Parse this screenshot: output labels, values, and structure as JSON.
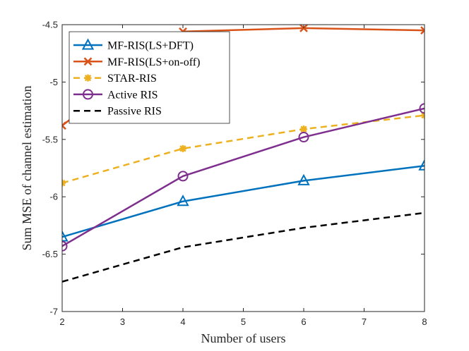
{
  "chart_data": {
    "type": "line",
    "xlabel": "Number of users",
    "ylabel": "Sum MSE of channel estimation",
    "xlim": [
      2,
      8
    ],
    "ylim": [
      -7,
      -4.5
    ],
    "xticks": [
      "2",
      "3",
      "4",
      "5",
      "6",
      "7",
      "8"
    ],
    "yticks": [
      "-7",
      "-6.5",
      "-6",
      "-5.5",
      "-5",
      "-4.5"
    ],
    "grid": false,
    "legend_position": "top-left",
    "series": [
      {
        "name": "MF-RIS(LS+DFT)",
        "color": "#0072BD",
        "style": "solid",
        "marker": "triangle",
        "x": [
          2,
          4,
          6,
          8
        ],
        "y": [
          -6.35,
          -6.04,
          -5.86,
          -5.73
        ]
      },
      {
        "name": "MF-RIS(LS+on-off)",
        "color": "#D95319",
        "style": "solid",
        "marker": "x",
        "x": [
          2,
          4,
          6,
          8
        ],
        "y": [
          -5.38,
          -4.56,
          -4.53,
          -4.55
        ]
      },
      {
        "name": "STAR-RIS",
        "color": "#EDB120",
        "style": "dashed",
        "marker": "star",
        "x": [
          2,
          4,
          6,
          8
        ],
        "y": [
          -5.88,
          -5.58,
          -5.41,
          -5.29
        ]
      },
      {
        "name": "Active RIS",
        "color": "#7E2F8E",
        "style": "solid",
        "marker": "circle",
        "x": [
          2,
          4,
          6,
          8
        ],
        "y": [
          -6.43,
          -5.82,
          -5.48,
          -5.23
        ]
      },
      {
        "name": "Passive RIS",
        "color": "#000000",
        "style": "dashed",
        "marker": "none",
        "x": [
          2,
          4,
          6,
          8
        ],
        "y": [
          -6.74,
          -6.44,
          -6.27,
          -6.14
        ]
      }
    ]
  }
}
